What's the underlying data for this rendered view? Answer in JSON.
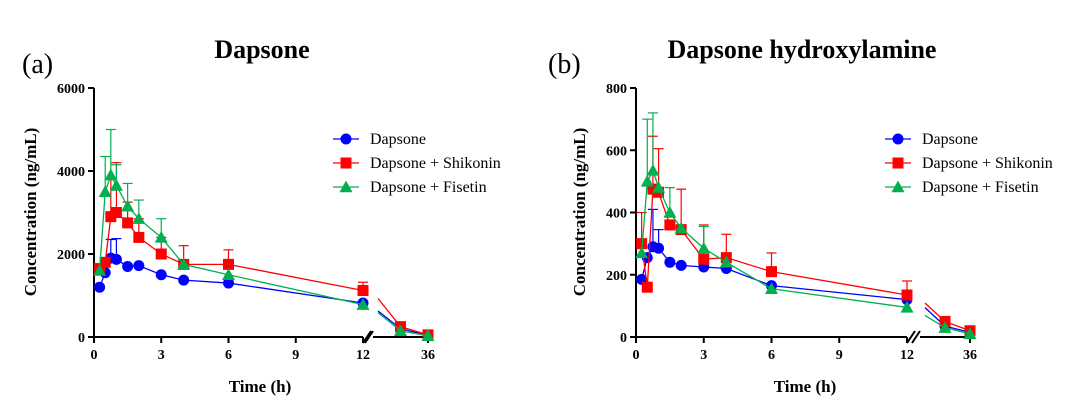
{
  "colors": {
    "Dapsone": "#0000ff",
    "Dapsone + Shikonin": "#ff0000",
    "Dapsone + Fisetin": "#00b050"
  },
  "chart_data": [
    {
      "panel_label": "(a)",
      "type": "line",
      "title": "Dapsone",
      "xlabel": "Time (h)",
      "ylabel": "Concentration (ng/mL)",
      "ylim": [
        0,
        6000
      ],
      "yticks": [
        0,
        2000,
        4000,
        6000
      ],
      "xticks": [
        "0",
        "3",
        "6",
        "9",
        "12",
        "36"
      ],
      "x_axis_broken": true,
      "x_segments": [
        [
          0,
          12
        ],
        [
          24,
          36
        ]
      ],
      "grid": false,
      "legend_position": "right",
      "series": [
        {
          "name": "Dapsone",
          "marker": "circle",
          "x": [
            0.25,
            0.5,
            0.75,
            1,
            1.5,
            2,
            3,
            4,
            6,
            12,
            30,
            36
          ],
          "y": [
            1200,
            1550,
            1900,
            1870,
            1700,
            1720,
            1500,
            1370,
            1300,
            820,
            200,
            40
          ],
          "err": [
            0,
            0,
            450,
            500,
            0,
            0,
            0,
            0,
            0,
            0,
            0,
            0
          ]
        },
        {
          "name": "Dapsone + Shikonin",
          "marker": "square",
          "x": [
            0.25,
            0.5,
            0.75,
            1,
            1.5,
            2,
            3,
            4,
            6,
            12,
            30,
            36
          ],
          "y": [
            1650,
            1800,
            2900,
            3000,
            2750,
            2400,
            2000,
            1750,
            1750,
            1120,
            250,
            50
          ],
          "err": [
            0,
            0,
            900,
            1200,
            500,
            450,
            400,
            450,
            350,
            200,
            0,
            0
          ]
        },
        {
          "name": "Dapsone + Fisetin",
          "marker": "triangle",
          "x": [
            0.25,
            0.5,
            0.75,
            1,
            1.5,
            2,
            3,
            4,
            6,
            12,
            30,
            36
          ],
          "y": [
            1600,
            3500,
            3900,
            3650,
            3150,
            2850,
            2400,
            1750,
            1500,
            780,
            150,
            30
          ],
          "err": [
            0,
            850,
            1100,
            500,
            550,
            450,
            450,
            0,
            0,
            0,
            0,
            0
          ]
        }
      ]
    },
    {
      "panel_label": "(b)",
      "type": "line",
      "title": "Dapsone hydroxylamine",
      "xlabel": "Time (h)",
      "ylabel": "Concentration (ng/mL)",
      "ylim": [
        0,
        800
      ],
      "yticks": [
        0,
        200,
        400,
        600,
        800
      ],
      "xticks": [
        "0",
        "3",
        "6",
        "9",
        "12",
        "36"
      ],
      "x_axis_broken": true,
      "x_segments": [
        [
          0,
          12
        ],
        [
          24,
          36
        ]
      ],
      "grid": false,
      "legend_position": "right",
      "series": [
        {
          "name": "Dapsone",
          "marker": "circle",
          "x": [
            0.25,
            0.5,
            0.75,
            1,
            1.5,
            2,
            3,
            4,
            6,
            12,
            30,
            36
          ],
          "y": [
            185,
            255,
            290,
            285,
            240,
            230,
            225,
            220,
            165,
            120,
            35,
            15
          ],
          "err": [
            0,
            0,
            120,
            60,
            0,
            0,
            0,
            0,
            0,
            0,
            0,
            0
          ]
        },
        {
          "name": "Dapsone + Shikonin",
          "marker": "square",
          "x": [
            0.25,
            0.5,
            0.75,
            1,
            1.5,
            2,
            3,
            4,
            6,
            12,
            30,
            36
          ],
          "y": [
            300,
            160,
            475,
            465,
            360,
            345,
            250,
            255,
            210,
            135,
            50,
            20
          ],
          "err": [
            100,
            0,
            170,
            140,
            0,
            130,
            110,
            75,
            60,
            45,
            0,
            0
          ]
        },
        {
          "name": "Dapsone + Fisetin",
          "marker": "triangle",
          "x": [
            0.25,
            0.5,
            0.75,
            1,
            1.5,
            2,
            3,
            4,
            6,
            12,
            30,
            36
          ],
          "y": [
            270,
            500,
            535,
            480,
            400,
            350,
            285,
            240,
            155,
            95,
            30,
            10
          ],
          "err": [
            0,
            200,
            185,
            0,
            80,
            0,
            70,
            0,
            0,
            0,
            0,
            0
          ]
        }
      ]
    }
  ]
}
